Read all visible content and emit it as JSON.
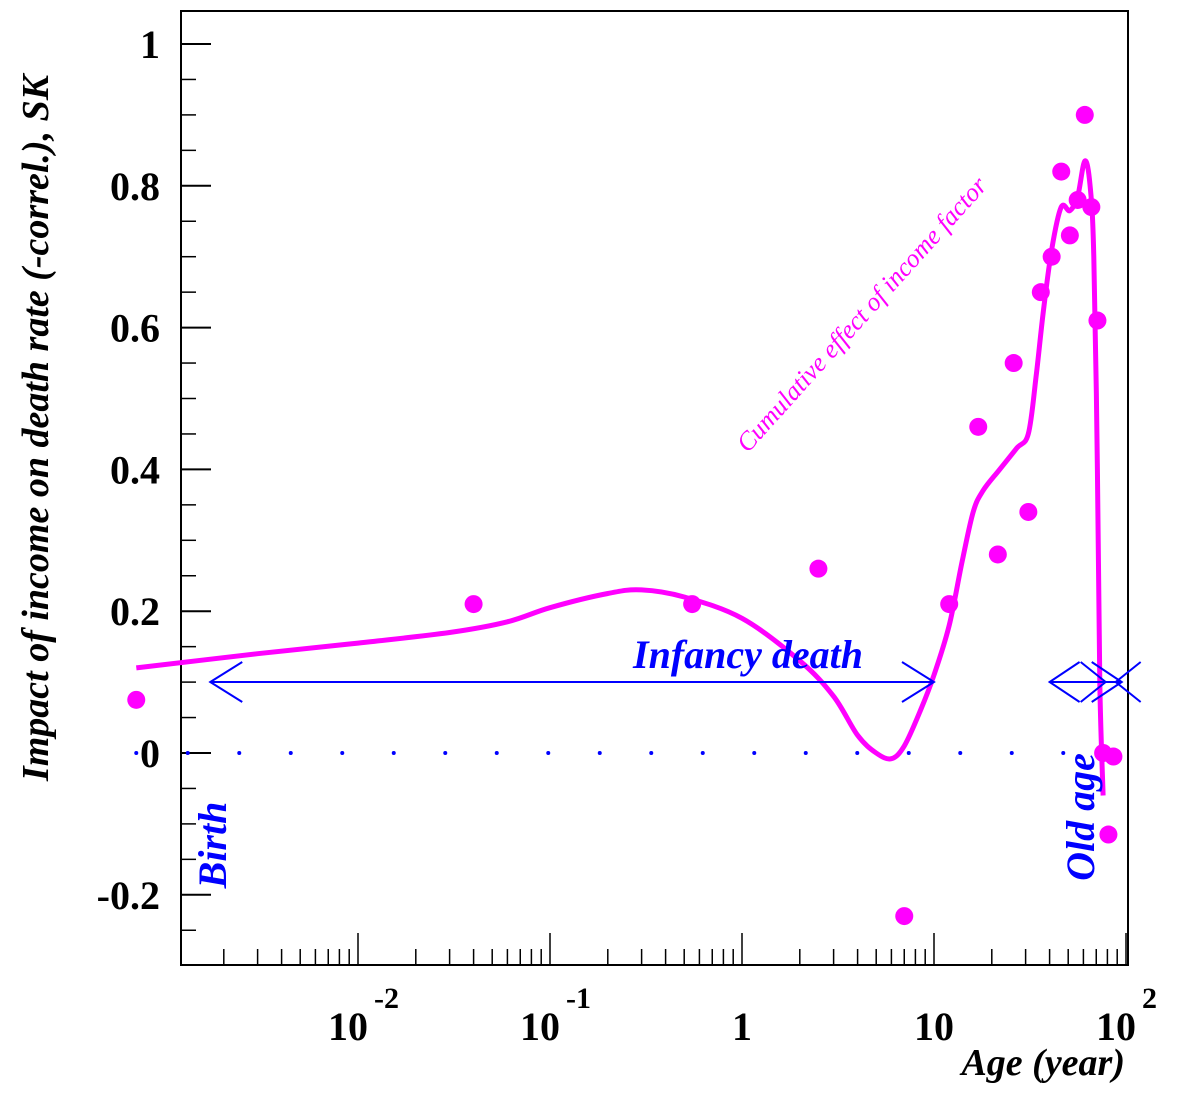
{
  "chart_data": {
    "type": "scatter",
    "xlabel": "Age (year)",
    "ylabel": "Impact of income on death rate (-correl.), SK",
    "x_scale": "log",
    "xlim": [
      0.0006,
      100
    ],
    "ylim": [
      -0.3,
      1.05
    ],
    "y_ticks": [
      -0.2,
      0,
      0.2,
      0.4,
      0.6,
      0.8,
      1
    ],
    "y_tick_labels": [
      "-0.2",
      "0",
      "0.2",
      "0.4",
      "0.6",
      "0.8",
      "1"
    ],
    "x_tick_labels": [
      {
        "value": 0.01,
        "base": "10",
        "exp": "-2"
      },
      {
        "value": 0.1,
        "base": "10",
        "exp": "-1"
      },
      {
        "value": 1,
        "base": "1",
        "exp": ""
      },
      {
        "value": 10,
        "base": "10",
        "exp": ""
      },
      {
        "value": 100,
        "base": "10",
        "exp": "2"
      }
    ],
    "grid": false,
    "series": [
      {
        "kind": "scatter",
        "color": "#ff00ff",
        "points": [
          {
            "x": 0.0007,
            "y": 0.075
          },
          {
            "x": 0.04,
            "y": 0.21
          },
          {
            "x": 0.55,
            "y": 0.21
          },
          {
            "x": 2.5,
            "y": 0.26
          },
          {
            "x": 7,
            "y": -0.23
          },
          {
            "x": 12,
            "y": 0.21
          },
          {
            "x": 17,
            "y": 0.46
          },
          {
            "x": 21.5,
            "y": 0.28
          },
          {
            "x": 26,
            "y": 0.55
          },
          {
            "x": 31,
            "y": 0.34
          },
          {
            "x": 36,
            "y": 0.65
          },
          {
            "x": 41,
            "y": 0.7
          },
          {
            "x": 46,
            "y": 0.82
          },
          {
            "x": 51,
            "y": 0.73
          },
          {
            "x": 56,
            "y": 0.78
          },
          {
            "x": 61,
            "y": 0.9
          },
          {
            "x": 66,
            "y": 0.77
          },
          {
            "x": 71,
            "y": 0.61
          },
          {
            "x": 76,
            "y": 0.0
          },
          {
            "x": 81,
            "y": -0.115
          },
          {
            "x": 86,
            "y": -0.005
          }
        ]
      },
      {
        "kind": "line",
        "color": "#ff00ff",
        "points": [
          {
            "x": 0.0007,
            "y": 0.12
          },
          {
            "x": 0.003,
            "y": 0.14
          },
          {
            "x": 0.01,
            "y": 0.155
          },
          {
            "x": 0.03,
            "y": 0.17
          },
          {
            "x": 0.06,
            "y": 0.185
          },
          {
            "x": 0.1,
            "y": 0.205
          },
          {
            "x": 0.2,
            "y": 0.225
          },
          {
            "x": 0.3,
            "y": 0.23
          },
          {
            "x": 0.5,
            "y": 0.22
          },
          {
            "x": 1,
            "y": 0.19
          },
          {
            "x": 2,
            "y": 0.13
          },
          {
            "x": 3,
            "y": 0.08
          },
          {
            "x": 4,
            "y": 0.025
          },
          {
            "x": 5,
            "y": 0.0
          },
          {
            "x": 6,
            "y": -0.008
          },
          {
            "x": 7,
            "y": 0.01
          },
          {
            "x": 8.5,
            "y": 0.06
          },
          {
            "x": 10,
            "y": 0.11
          },
          {
            "x": 12,
            "y": 0.18
          },
          {
            "x": 14,
            "y": 0.27
          },
          {
            "x": 16,
            "y": 0.34
          },
          {
            "x": 18,
            "y": 0.37
          },
          {
            "x": 22,
            "y": 0.4
          },
          {
            "x": 27,
            "y": 0.43
          },
          {
            "x": 31,
            "y": 0.45
          },
          {
            "x": 34,
            "y": 0.53
          },
          {
            "x": 37,
            "y": 0.62
          },
          {
            "x": 41,
            "y": 0.71
          },
          {
            "x": 46,
            "y": 0.77
          },
          {
            "x": 51,
            "y": 0.765
          },
          {
            "x": 56,
            "y": 0.785
          },
          {
            "x": 61,
            "y": 0.835
          },
          {
            "x": 65,
            "y": 0.8
          },
          {
            "x": 68,
            "y": 0.7
          },
          {
            "x": 71,
            "y": 0.4
          },
          {
            "x": 73,
            "y": 0.1
          },
          {
            "x": 76,
            "y": -0.06
          }
        ]
      },
      {
        "kind": "dotted_line",
        "color": "#0000ff",
        "y": 0,
        "x_range": [
          0.0007,
          80
        ]
      }
    ],
    "annotations": [
      {
        "text": "Infancy death",
        "color": "#0000ff",
        "arrow_x": [
          0.0017,
          10
        ]
      },
      {
        "text": "Old age",
        "color": "#0000ff",
        "arrow_x": [
          40,
          95
        ]
      },
      {
        "text": "Birth",
        "color": "#0000ff"
      },
      {
        "text": "Cumulative effect of income factor",
        "color": "#ff00ff"
      }
    ]
  }
}
